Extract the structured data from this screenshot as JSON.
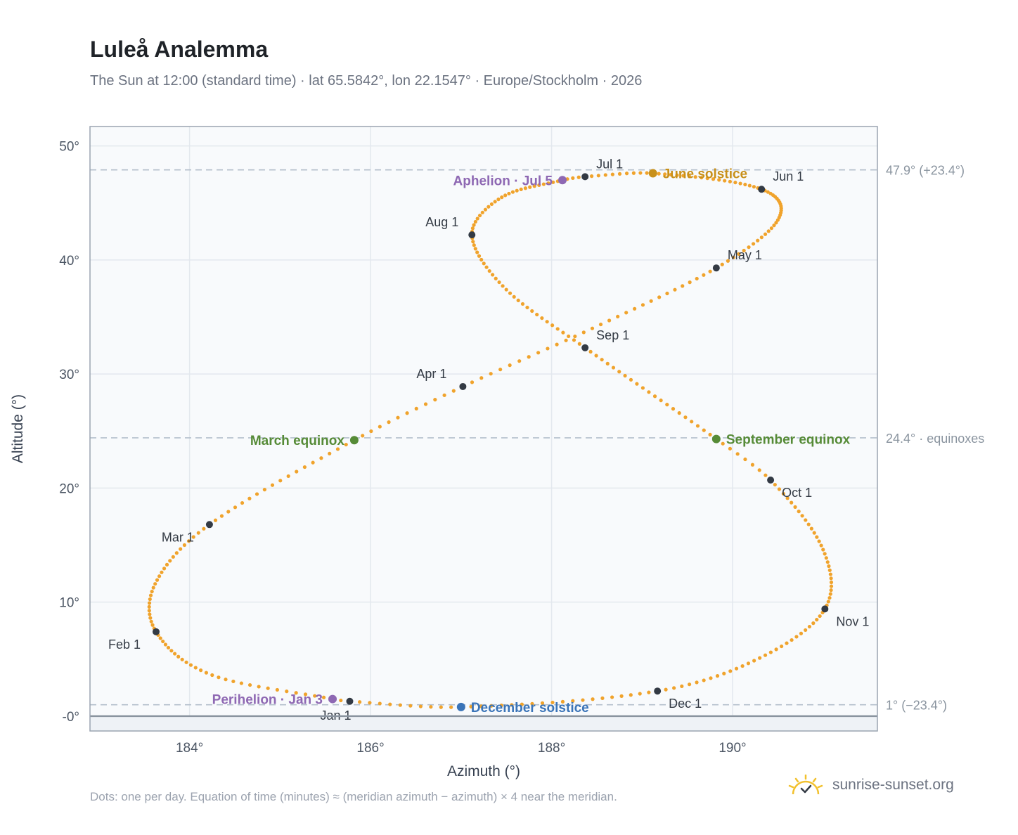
{
  "title": "Luleå Analemma",
  "subtitle": "The Sun at 12:00 (standard time) · lat 65.5842°, lon 22.1547° · Europe/Stockholm · 2026",
  "footnote": "Dots: one per day. Equation of time (minutes) ≈ (meridian azimuth − azimuth) × 4 near the meridian.",
  "brand": {
    "text": "sunrise-sunset.org",
    "icon": "sun-check-icon"
  },
  "colors": {
    "path": "#f0a32c",
    "month": "#333a44",
    "solstice_june": "#c8901a",
    "solstice_december": "#3a74b8",
    "equinox": "#568b37",
    "apsis": "#8e68b3",
    "frame": "#9aa4b0",
    "plot_bg": "#f8fafc"
  },
  "chart_data": {
    "type": "scatter",
    "xlabel": "Azimuth (°)",
    "ylabel": "Altitude (°)",
    "xlim": [
      182.9,
      191.6
    ],
    "ylim": [
      -1.3,
      51.7
    ],
    "x_ticks": [
      {
        "value": 184,
        "label": "184°"
      },
      {
        "value": 186,
        "label": "186°"
      },
      {
        "value": 188,
        "label": "188°"
      },
      {
        "value": 190,
        "label": "190°"
      }
    ],
    "y_ticks": [
      {
        "value": 0,
        "label": "-0°"
      },
      {
        "value": 10,
        "label": "10°"
      },
      {
        "value": 20,
        "label": "20°"
      },
      {
        "value": 30,
        "label": "30°"
      },
      {
        "value": 40,
        "label": "40°"
      },
      {
        "value": 50,
        "label": "50°"
      }
    ],
    "grid": true,
    "reference_lines": [
      {
        "value": 47.9,
        "label": "47.9° (+23.4°)"
      },
      {
        "value": 24.4,
        "label": "24.4° · equinoxes"
      },
      {
        "value": 1,
        "label": "1° (−23.4°)"
      }
    ],
    "month_points": [
      {
        "label": "Jan 1",
        "x": 185.77,
        "y": 1.3,
        "anchor": "below"
      },
      {
        "label": "Feb 1",
        "x": 183.63,
        "y": 7.4,
        "anchor": "below-left"
      },
      {
        "label": "Mar 1",
        "x": 184.22,
        "y": 16.8,
        "anchor": "below-left"
      },
      {
        "label": "Apr 1",
        "x": 187.02,
        "y": 28.9,
        "anchor": "above-left"
      },
      {
        "label": "May 1",
        "x": 189.82,
        "y": 39.3,
        "anchor": "above-right"
      },
      {
        "label": "Jun 1",
        "x": 190.32,
        "y": 46.2,
        "anchor": "above-right"
      },
      {
        "label": "Jul 1",
        "x": 188.37,
        "y": 47.3,
        "anchor": "above-right"
      },
      {
        "label": "Aug 1",
        "x": 187.12,
        "y": 42.2,
        "anchor": "above-left"
      },
      {
        "label": "Sep 1",
        "x": 188.37,
        "y": 32.3,
        "anchor": "above-right"
      },
      {
        "label": "Oct 1",
        "x": 190.42,
        "y": 20.7,
        "anchor": "below-right"
      },
      {
        "label": "Nov 1",
        "x": 191.02,
        "y": 9.4,
        "anchor": "below-right"
      },
      {
        "label": "Dec 1",
        "x": 189.17,
        "y": 2.2,
        "anchor": "below-right"
      }
    ],
    "events": [
      {
        "label": "June solstice",
        "x": 189.12,
        "y": 47.6,
        "kind": "solstice_june",
        "anchor": "right"
      },
      {
        "label": "December solstice",
        "x": 187.0,
        "y": 0.8,
        "kind": "solstice_december",
        "anchor": "right"
      },
      {
        "label": "March equinox",
        "x": 185.82,
        "y": 24.2,
        "kind": "equinox",
        "anchor": "left"
      },
      {
        "label": "September equinox",
        "x": 189.82,
        "y": 24.3,
        "kind": "equinox",
        "anchor": "right"
      },
      {
        "label": "Aphelion · Jul 5",
        "x": 188.12,
        "y": 47.0,
        "kind": "apsis",
        "anchor": "left"
      },
      {
        "label": "Perihelion · Jan 3",
        "x": 185.58,
        "y": 1.5,
        "kind": "apsis",
        "anchor": "left"
      }
    ]
  }
}
